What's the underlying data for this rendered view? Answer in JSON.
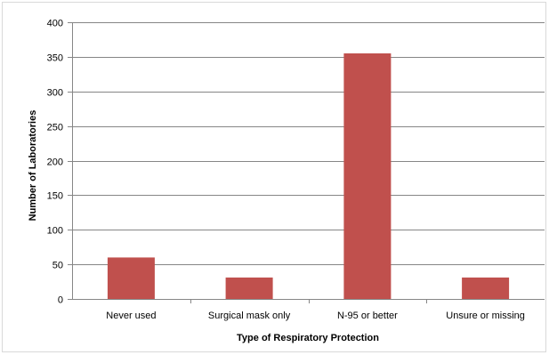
{
  "chart_data": {
    "type": "bar",
    "title": "",
    "xlabel": "Type of Respiratory Protection",
    "ylabel": "Number of Laboratories",
    "categories": [
      "Never used",
      "Surgical mask only",
      "N-95 or better",
      "Unsure or missing"
    ],
    "values": [
      60,
      31,
      355,
      31
    ],
    "ylim": [
      0,
      400
    ],
    "yticks": [
      0,
      50,
      100,
      150,
      200,
      250,
      300,
      350,
      400
    ],
    "grid": true,
    "legend": "none",
    "bar_color": "#c0504d",
    "gridline_color": "#868686"
  }
}
